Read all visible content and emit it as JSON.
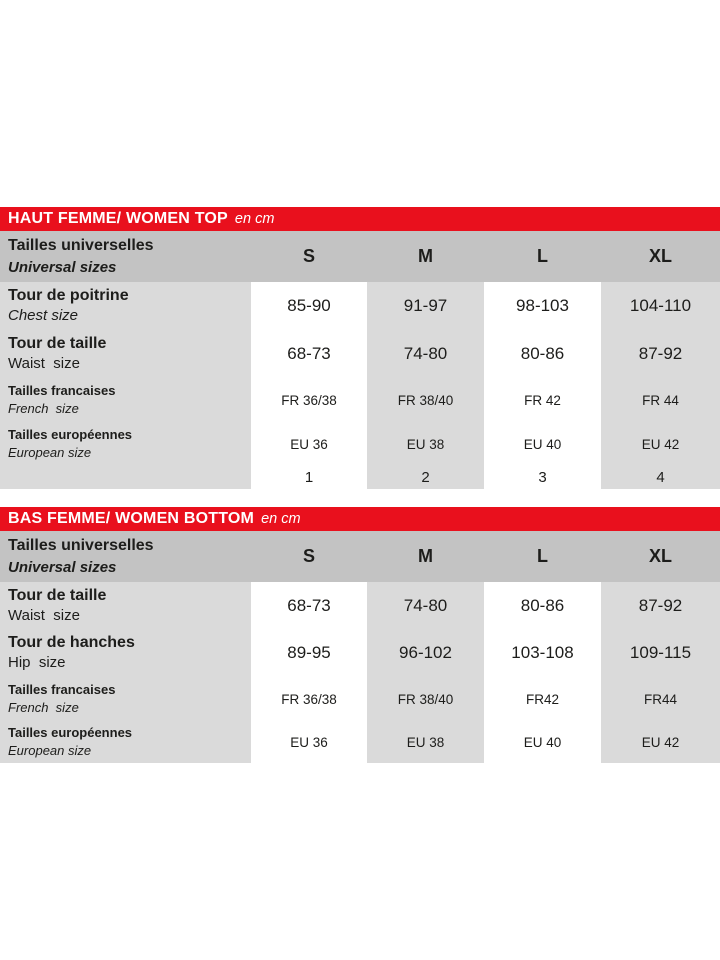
{
  "colors": {
    "accent_red": "#e9101d",
    "header_row_gray": "#c3c3c3",
    "shaded_cell_gray": "#dadada",
    "text": "#1d1d1b"
  },
  "tables": [
    {
      "title": "HAUT FEMME/ WOMEN TOP",
      "unit": "en cm",
      "header": {
        "label_fr": "Tailles universelles",
        "label_en": "Universal sizes",
        "col_s": "S",
        "col_m": "M",
        "col_l": "L",
        "col_xl": "XL"
      },
      "rows": [
        {
          "fr": "Tour de poitrine",
          "en": "Chest size",
          "v1": "85-90",
          "v2": "91-97",
          "v3": "98-103",
          "v4": "104-110"
        },
        {
          "fr": "Tour de taille",
          "en": "Waist  size",
          "v1": "68-73",
          "v2": "74-80",
          "v3": "80-86",
          "v4": "87-92"
        },
        {
          "fr": "Tailles francaises",
          "en": "French  size",
          "v1": "FR 36/38",
          "v2": "FR 38/40",
          "v3": "FR 42",
          "v4": "FR 44"
        },
        {
          "fr": "Tailles européennes",
          "en": "European size",
          "v1": "EU 36",
          "v2": "EU 38",
          "v3": "EU 40",
          "v4": "EU 42"
        },
        {
          "fr": "",
          "en": "",
          "v1": "1",
          "v2": "2",
          "v3": "3",
          "v4": "4"
        }
      ]
    },
    {
      "title": "BAS FEMME/ WOMEN BOTTOM",
      "unit": "en cm",
      "header": {
        "label_fr": "Tailles universelles",
        "label_en": "Universal sizes",
        "col_s": "S",
        "col_m": "M",
        "col_l": "L",
        "col_xl": "XL"
      },
      "rows": [
        {
          "fr": "Tour de taille",
          "en": "Waist  size",
          "v1": "68-73",
          "v2": "74-80",
          "v3": "80-86",
          "v4": "87-92"
        },
        {
          "fr": "Tour de hanches",
          "en": "Hip  size",
          "v1": "89-95",
          "v2": "96-102",
          "v3": "103-108",
          "v4": "109-115"
        },
        {
          "fr": "Tailles francaises",
          "en": "French  size",
          "v1": "FR 36/38",
          "v2": "FR 38/40",
          "v3": "FR42",
          "v4": "FR44"
        },
        {
          "fr": "Tailles européennes",
          "en": "European size",
          "v1": "EU 36",
          "v2": "EU 38",
          "v3": "EU 40",
          "v4": "EU 42"
        }
      ]
    }
  ]
}
